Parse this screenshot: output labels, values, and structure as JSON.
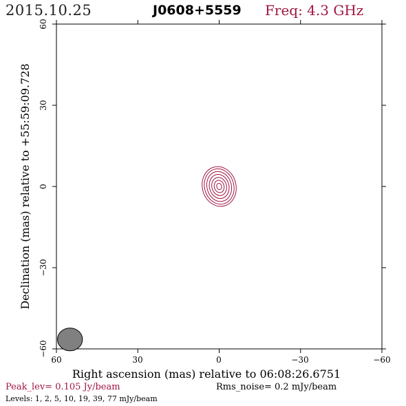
{
  "header": {
    "date": "2015.10.25",
    "source": "J0608+5559",
    "frequency": "Freq: 4.3 GHz"
  },
  "axes": {
    "xlabel": "Right ascension (mas) relative to 06:08:26.6751",
    "ylabel": "Declination (mas) relative to +55:59:09.728",
    "x_ticks": [
      "60",
      "30",
      "0",
      "−30",
      "−60"
    ],
    "y_ticks": [
      "60",
      "30",
      "0",
      "−30",
      "−60"
    ],
    "xlim": [
      60,
      -60
    ],
    "ylim": [
      -60,
      60
    ]
  },
  "footer": {
    "peak": "Peak_lev=  0.105 Jy/beam",
    "rms": "Rms_noise=  0.2 mJy/beam",
    "levels": "Levels:   1,   2,   5,  10,  19,  39,  77 mJy/beam"
  },
  "colors": {
    "contour": "#a01540",
    "beam": "#808080",
    "accent": "#a01540"
  },
  "chart_data": {
    "type": "contour",
    "contour_center": [
      0,
      0
    ],
    "contour_levels_mJy": [
      1,
      2,
      5,
      10,
      19,
      39,
      77
    ],
    "contours": [
      {
        "level": 1,
        "rx": 6.2,
        "ry": 7.4
      },
      {
        "level": 2,
        "rx": 5.4,
        "ry": 6.6
      },
      {
        "level": 5,
        "rx": 4.5,
        "ry": 5.6
      },
      {
        "level": 10,
        "rx": 3.6,
        "ry": 4.5
      },
      {
        "level": 19,
        "rx": 2.7,
        "ry": 3.4
      },
      {
        "level": 39,
        "rx": 1.8,
        "ry": 2.3
      },
      {
        "level": 77,
        "rx": 0.9,
        "ry": 1.2
      }
    ],
    "beam": {
      "center": [
        55,
        -56.5
      ],
      "major_mas": 4.6,
      "minor_mas": 4.2
    }
  }
}
